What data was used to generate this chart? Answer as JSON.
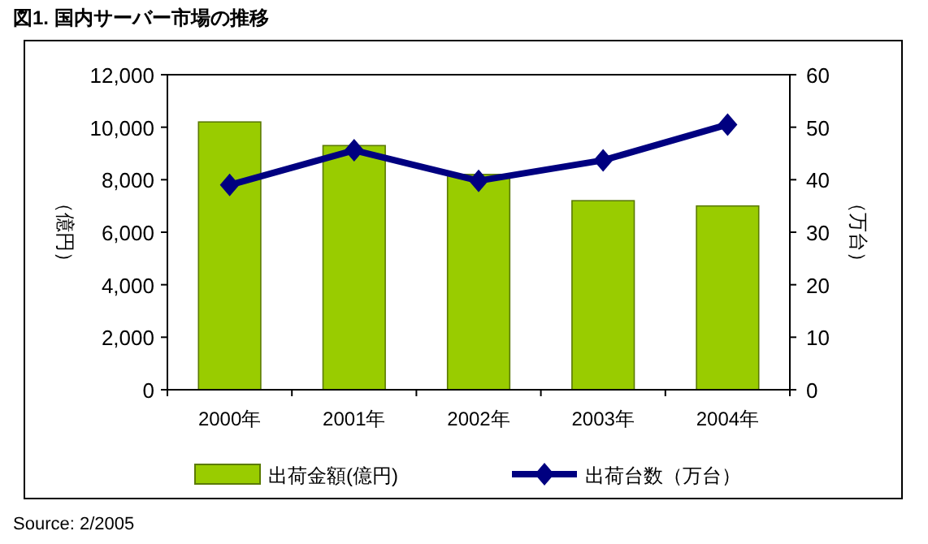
{
  "chart_data": {
    "type": "bar",
    "title": "図1.  国内サーバー市場の推移",
    "ylabel": "（億円）",
    "y2label": "（万台）",
    "categories": [
      "2000年",
      "2001年",
      "2002年",
      "2003年",
      "2004年"
    ],
    "series": [
      {
        "name": "出荷金額(億円)",
        "color": "#99cc00",
        "values": [
          10200,
          9300,
          8200,
          7200,
          7000
        ]
      },
      {
        "name": "出荷台数（万台）",
        "type": "line",
        "axis": "y2",
        "color": "#000080",
        "marker": "diamond",
        "values": [
          39.0,
          45.6,
          39.8,
          43.7,
          50.5
        ]
      }
    ],
    "ylim": [
      0,
      12000
    ],
    "yticks": [
      {
        "value": 0,
        "label": "0"
      },
      {
        "value": 2000,
        "label": "2,000"
      },
      {
        "value": 4000,
        "label": "4,000"
      },
      {
        "value": 6000,
        "label": "6,000"
      },
      {
        "value": 8000,
        "label": "8,000"
      },
      {
        "value": 10000,
        "label": "10,000"
      },
      {
        "value": 12000,
        "label": "12,000"
      }
    ],
    "y2lim": [
      0,
      60
    ],
    "y2ticks": [
      0,
      10,
      20,
      30,
      40,
      50,
      60
    ],
    "grid": false,
    "legend": "bottom",
    "annotations": [
      "Source: 2/2005"
    ]
  }
}
